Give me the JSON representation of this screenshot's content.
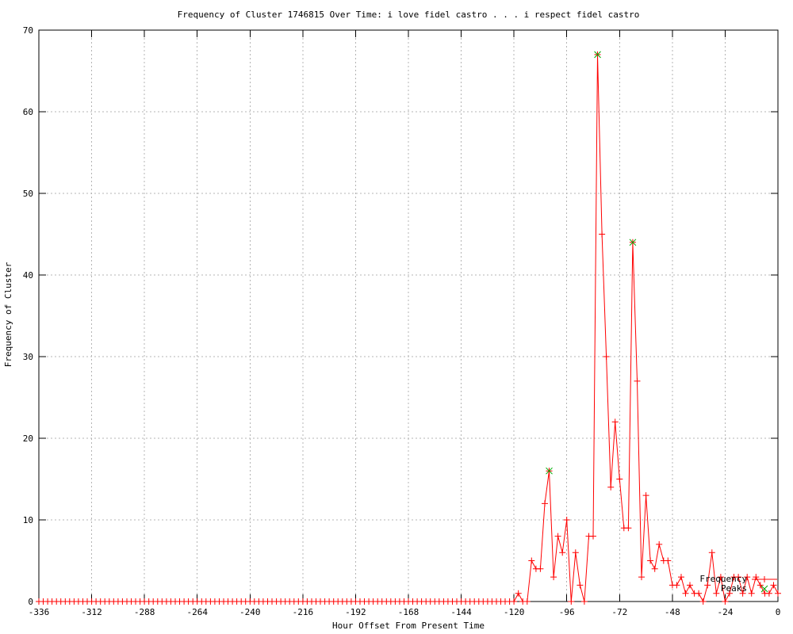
{
  "title": "Frequency of Cluster 1746815 Over Time: i love fidel castro . . . i respect fidel castro",
  "xlabel": "Hour Offset From Present Time",
  "ylabel": "Frequency of Cluster",
  "legend": {
    "items": [
      {
        "label": "Frequency",
        "color": "#ff0000",
        "marker": "plus"
      },
      {
        "label": "Peaks",
        "color": "#00a800",
        "marker": "cross"
      }
    ]
  },
  "colors": {
    "line": "#ff0000",
    "peaks": "#00a800",
    "grid": "#b4b4b4",
    "border": "#000000",
    "background": "#ffffff"
  },
  "chart_data": {
    "type": "line",
    "title": "Frequency of Cluster 1746815 Over Time: i love fidel castro . . . i respect fidel castro",
    "xlabel": "Hour Offset From Present Time",
    "ylabel": "Frequency of Cluster",
    "xlim": [
      -336,
      0
    ],
    "ylim": [
      0,
      70
    ],
    "x_ticks": [
      -336,
      -312,
      -288,
      -264,
      -240,
      -216,
      -192,
      -168,
      -144,
      -120,
      -96,
      -72,
      -48,
      -24,
      0
    ],
    "y_ticks": [
      0,
      10,
      20,
      30,
      40,
      50,
      60,
      70
    ],
    "grid": true,
    "legend_position": "bottom-right-inside",
    "series": [
      {
        "name": "Frequency",
        "color": "#ff0000",
        "marker": "plus",
        "x_start": -336,
        "x_step": 2,
        "values": [
          0,
          0,
          0,
          0,
          0,
          0,
          0,
          0,
          0,
          0,
          0,
          0,
          0,
          0,
          0,
          0,
          0,
          0,
          0,
          0,
          0,
          0,
          0,
          0,
          0,
          0,
          0,
          0,
          0,
          0,
          0,
          0,
          0,
          0,
          0,
          0,
          0,
          0,
          0,
          0,
          0,
          0,
          0,
          0,
          0,
          0,
          0,
          0,
          0,
          0,
          0,
          0,
          0,
          0,
          0,
          0,
          0,
          0,
          0,
          0,
          0,
          0,
          0,
          0,
          0,
          0,
          0,
          0,
          0,
          0,
          0,
          0,
          0,
          0,
          0,
          0,
          0,
          0,
          0,
          0,
          0,
          0,
          0,
          0,
          0,
          0,
          0,
          0,
          0,
          0,
          0,
          0,
          0,
          0,
          0,
          0,
          0,
          0,
          0,
          0,
          0,
          0,
          0,
          0,
          0,
          0,
          0,
          0,
          0,
          1,
          0,
          0,
          5,
          4,
          4,
          12,
          16,
          3,
          8,
          6,
          10,
          0,
          6,
          2,
          0,
          8,
          8,
          67,
          45,
          30,
          14,
          22,
          15,
          9,
          9,
          44,
          27,
          3,
          13,
          5,
          4,
          7,
          5,
          5,
          2,
          2,
          3,
          1,
          2,
          1,
          1,
          0,
          2,
          6,
          1,
          3,
          0,
          1,
          3,
          3,
          1,
          3,
          1,
          3,
          2,
          1,
          1,
          2,
          1
        ]
      },
      {
        "name": "Peaks",
        "color": "#00a800",
        "marker": "cross",
        "points": [
          [
            -104,
            16
          ],
          [
            -82,
            67
          ],
          [
            -66,
            44
          ]
        ]
      }
    ]
  }
}
